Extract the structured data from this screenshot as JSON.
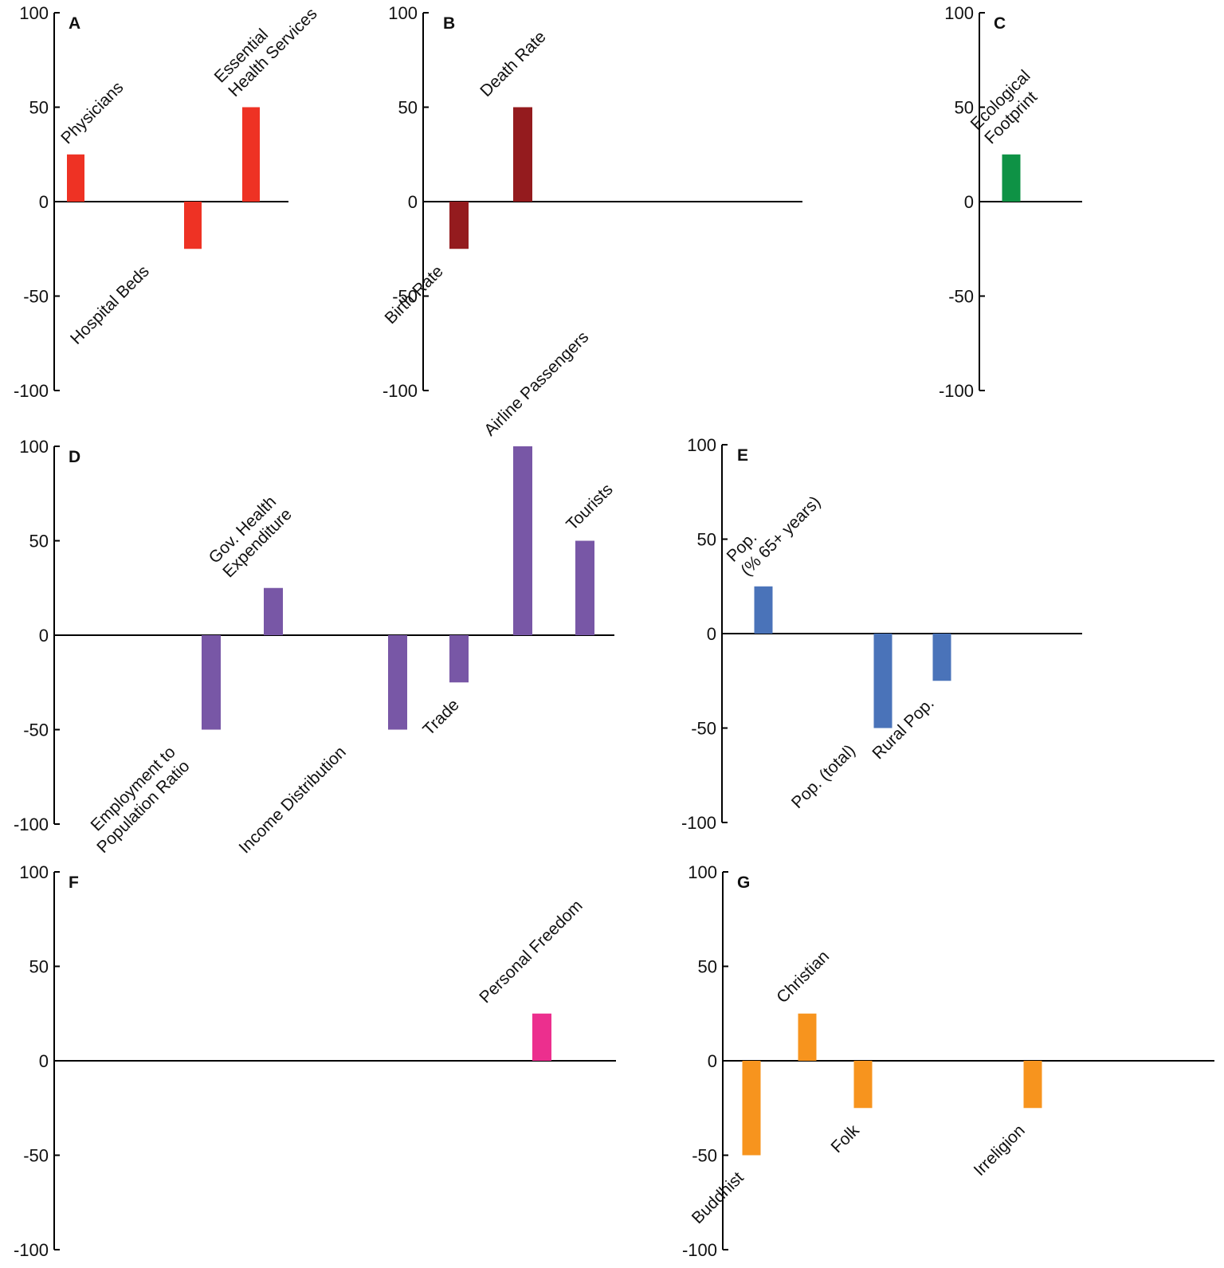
{
  "chart_data": [
    {
      "panel": "A",
      "type": "bar",
      "ylim": [
        -100,
        100
      ],
      "color": "#ee3224",
      "categories": [
        "Physicians",
        "Hospital Beds",
        "Essential Health Services"
      ],
      "label_lines": [
        [
          "Physicians"
        ],
        [
          "Hospital Beds"
        ],
        [
          "Essential",
          "Health Services"
        ]
      ],
      "values": [
        25,
        -25,
        50
      ],
      "yticks": [
        "100",
        "50",
        "0",
        "-50",
        "-100"
      ]
    },
    {
      "panel": "B",
      "type": "bar",
      "ylim": [
        -100,
        100
      ],
      "color": "#941b1e",
      "categories": [
        "Birth Rate",
        "Death Rate"
      ],
      "label_lines": [
        [
          "Birth Rate"
        ],
        [
          "Death Rate"
        ]
      ],
      "values": [
        -25,
        50
      ],
      "yticks": [
        "100",
        "50",
        "0",
        "-50",
        "-100"
      ]
    },
    {
      "panel": "C",
      "type": "bar",
      "ylim": [
        -100,
        100
      ],
      "color": "#0e9245",
      "categories": [
        "Ecological Footprint"
      ],
      "label_lines": [
        [
          "Ecological",
          "Footprint"
        ]
      ],
      "values": [
        25
      ],
      "yticks": [
        "100",
        "50",
        "0",
        "-50",
        "-100"
      ]
    },
    {
      "panel": "D",
      "type": "bar",
      "ylim": [
        -100,
        100
      ],
      "color": "#7857a6",
      "categories": [
        "Employment to Population Ratio",
        "Gov. Health Expenditure",
        "Income Distribution",
        "Trade",
        "Airline Passengers",
        "Tourists"
      ],
      "label_lines": [
        [
          "Employment to",
          "Population Ratio"
        ],
        [
          "Gov. Health",
          "Expenditure"
        ],
        [
          "Income Distribution"
        ],
        [
          "Trade"
        ],
        [
          "Airline Passengers"
        ],
        [
          "Tourists"
        ]
      ],
      "values": [
        -50,
        25,
        -50,
        -25,
        100,
        50
      ],
      "yticks": [
        "100",
        "50",
        "0",
        "-50",
        "-100"
      ]
    },
    {
      "panel": "E",
      "type": "bar",
      "ylim": [
        -100,
        100
      ],
      "color": "#4a73b9",
      "categories": [
        "Pop. (% 65+ years)",
        "Pop. (total)",
        "Rural Pop."
      ],
      "label_lines": [
        [
          "Pop.",
          "(% 65+ years)"
        ],
        [
          "Pop. (total)"
        ],
        [
          "Rural Pop."
        ]
      ],
      "values": [
        25,
        -50,
        -25
      ],
      "yticks": [
        "100",
        "50",
        "0",
        "-50",
        "-100"
      ]
    },
    {
      "panel": "F",
      "type": "bar",
      "ylim": [
        -100,
        100
      ],
      "color": "#ec2f8e",
      "categories": [
        "Personal Freedom"
      ],
      "label_lines": [
        [
          "Personal Freedom"
        ]
      ],
      "values": [
        25
      ],
      "yticks": [
        "100",
        "50",
        "0",
        "-50",
        "-100"
      ]
    },
    {
      "panel": "G",
      "type": "bar",
      "ylim": [
        -100,
        100
      ],
      "color": "#f7941e",
      "categories": [
        "Buddhist",
        "Christian",
        "Folk",
        "Irreligion"
      ],
      "label_lines": [
        [
          "Buddhist"
        ],
        [
          "Christian"
        ],
        [
          "Folk"
        ],
        [
          "Irreligion"
        ]
      ],
      "values": [
        -50,
        25,
        -25,
        -25
      ],
      "yticks": [
        "100",
        "50",
        "0",
        "-50",
        "-100"
      ]
    }
  ]
}
